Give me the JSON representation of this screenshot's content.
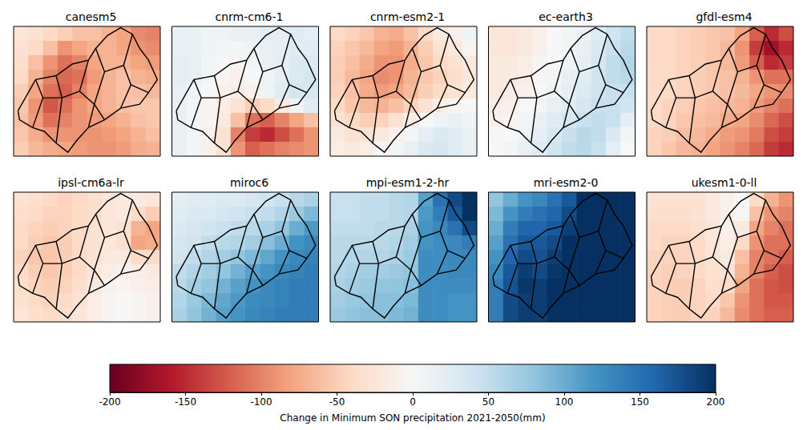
{
  "chart_data": {
    "type": "heatmap",
    "tick_labels": false,
    "colorbar": {
      "range": [
        -200,
        200
      ],
      "ticks": [
        -200,
        -150,
        -100,
        -50,
        0,
        50,
        100,
        150,
        200
      ],
      "label": "Change in Minimum SON precipitation 2021-2050(mm)"
    },
    "panels": [
      {
        "title": "canesm5",
        "cells": [
          [
            -25,
            -30,
            -40,
            -50,
            -60,
            -60,
            -70,
            -80,
            -95,
            -100
          ],
          [
            -30,
            -40,
            -60,
            -90,
            -80,
            -70,
            -70,
            -80,
            -90,
            -95
          ],
          [
            -35,
            -60,
            -90,
            -110,
            -100,
            -80,
            -70,
            -70,
            -80,
            -85
          ],
          [
            -40,
            -70,
            -100,
            -115,
            -110,
            -85,
            -70,
            -60,
            -70,
            -75
          ],
          [
            -50,
            -80,
            -110,
            -120,
            -100,
            -80,
            -70,
            -60,
            -60,
            -65
          ],
          [
            -55,
            -90,
            -125,
            -110,
            -90,
            -80,
            -70,
            -60,
            -55,
            -55
          ],
          [
            -60,
            -85,
            -110,
            -100,
            -90,
            -85,
            -80,
            -70,
            -60,
            -55
          ],
          [
            -55,
            -75,
            -90,
            -90,
            -90,
            -90,
            -85,
            -80,
            -70,
            -60
          ],
          [
            -50,
            -65,
            -75,
            -80,
            -85,
            -90,
            -90,
            -85,
            -75,
            -70
          ]
        ]
      },
      {
        "title": "cnrm-cm6-1",
        "cells": [
          [
            15,
            15,
            10,
            10,
            15,
            15,
            20,
            20,
            25,
            20
          ],
          [
            15,
            15,
            10,
            5,
            5,
            10,
            15,
            20,
            25,
            25
          ],
          [
            20,
            15,
            5,
            0,
            -5,
            5,
            15,
            20,
            30,
            30
          ],
          [
            20,
            15,
            5,
            -5,
            -10,
            0,
            10,
            20,
            30,
            35
          ],
          [
            15,
            10,
            0,
            -10,
            -15,
            -10,
            10,
            25,
            35,
            35
          ],
          [
            15,
            5,
            -5,
            -15,
            -30,
            -50,
            -40,
            -20,
            10,
            25
          ],
          [
            15,
            5,
            -5,
            -20,
            -60,
            -110,
            -120,
            -100,
            -80,
            -60
          ],
          [
            15,
            5,
            -10,
            -30,
            -100,
            -140,
            -150,
            -130,
            -110,
            -90
          ],
          [
            15,
            5,
            -10,
            -30,
            -90,
            -120,
            -110,
            -100,
            -95,
            -90
          ]
        ]
      },
      {
        "title": "cnrm-esm2-1",
        "cells": [
          [
            -40,
            -45,
            -55,
            -70,
            -75,
            -60,
            -40,
            -20,
            -10,
            10
          ],
          [
            -45,
            -55,
            -65,
            -80,
            -85,
            -70,
            -50,
            -30,
            -20,
            -5
          ],
          [
            -50,
            -60,
            -75,
            -90,
            -90,
            -75,
            -55,
            -40,
            -30,
            -20
          ],
          [
            -50,
            -65,
            -80,
            -95,
            -90,
            -70,
            -55,
            -45,
            -35,
            -25
          ],
          [
            -45,
            -60,
            -75,
            -85,
            -80,
            -65,
            -50,
            -40,
            -30,
            -20
          ],
          [
            -40,
            -55,
            -65,
            -70,
            -60,
            -45,
            -30,
            -15,
            -5,
            0
          ],
          [
            -30,
            -40,
            -50,
            -45,
            -30,
            -15,
            0,
            10,
            15,
            10
          ],
          [
            -20,
            -30,
            -30,
            -20,
            -10,
            5,
            20,
            30,
            25,
            15
          ],
          [
            -15,
            -20,
            -15,
            -5,
            5,
            15,
            30,
            35,
            25,
            15
          ]
        ]
      },
      {
        "title": "ec-earth3",
        "cells": [
          [
            -25,
            -25,
            -20,
            -10,
            0,
            5,
            10,
            25,
            40,
            50
          ],
          [
            -25,
            -25,
            -20,
            -10,
            0,
            5,
            15,
            30,
            45,
            55
          ],
          [
            -20,
            -20,
            -15,
            -5,
            0,
            10,
            20,
            35,
            50,
            60
          ],
          [
            -20,
            -20,
            -15,
            -5,
            5,
            15,
            25,
            40,
            50,
            55
          ],
          [
            -20,
            -15,
            -10,
            0,
            10,
            20,
            30,
            40,
            45,
            45
          ],
          [
            -15,
            -10,
            0,
            5,
            15,
            25,
            35,
            45,
            45,
            40
          ],
          [
            -10,
            -5,
            5,
            15,
            25,
            35,
            45,
            50,
            45,
            20
          ],
          [
            -5,
            0,
            10,
            20,
            35,
            45,
            55,
            50,
            30,
            5
          ],
          [
            0,
            5,
            15,
            25,
            40,
            50,
            55,
            45,
            20,
            0
          ]
        ]
      },
      {
        "title": "gfdl-esm4",
        "cells": [
          [
            -40,
            -40,
            -45,
            -50,
            -55,
            -60,
            -80,
            -120,
            -150,
            -130
          ],
          [
            -40,
            -40,
            -45,
            -50,
            -55,
            -65,
            -90,
            -140,
            -170,
            -150
          ],
          [
            -40,
            -40,
            -45,
            -50,
            -55,
            -65,
            -85,
            -120,
            -150,
            -140
          ],
          [
            -40,
            -40,
            -45,
            -50,
            -55,
            -60,
            -70,
            -90,
            -110,
            -110
          ],
          [
            -40,
            -40,
            -45,
            -50,
            -55,
            -60,
            -65,
            -80,
            -90,
            -95
          ],
          [
            -40,
            -45,
            -50,
            -55,
            -60,
            -65,
            -70,
            -85,
            -100,
            -110
          ],
          [
            -40,
            -45,
            -55,
            -60,
            -65,
            -75,
            -80,
            -95,
            -115,
            -130
          ],
          [
            -45,
            -50,
            -60,
            -65,
            -75,
            -85,
            -90,
            -105,
            -130,
            -140
          ],
          [
            -45,
            -55,
            -65,
            -70,
            -80,
            -90,
            -100,
            -115,
            -140,
            -150
          ]
        ]
      },
      {
        "title": "ipsl-cm6a-lr",
        "cells": [
          [
            -30,
            -35,
            -40,
            -45,
            -40,
            -35,
            -25,
            -20,
            -20,
            -25
          ],
          [
            -35,
            -40,
            -45,
            -45,
            -40,
            -35,
            -25,
            -20,
            -40,
            -50
          ],
          [
            -40,
            -45,
            -50,
            -45,
            -40,
            -30,
            -25,
            -30,
            -70,
            -80
          ],
          [
            -40,
            -50,
            -55,
            -50,
            -40,
            -30,
            -25,
            -35,
            -80,
            -75
          ],
          [
            -45,
            -55,
            -55,
            -50,
            -40,
            -30,
            -20,
            -20,
            -40,
            -40
          ],
          [
            -40,
            -50,
            -55,
            -50,
            -40,
            -25,
            -15,
            -10,
            -15,
            -20
          ],
          [
            -35,
            -45,
            -50,
            -45,
            -35,
            -20,
            -10,
            -5,
            -10,
            -15
          ],
          [
            -30,
            -40,
            -45,
            -40,
            -30,
            -15,
            -5,
            0,
            -5,
            -10
          ],
          [
            -25,
            -35,
            -40,
            -35,
            -25,
            -15,
            -5,
            0,
            -5,
            -10
          ]
        ]
      },
      {
        "title": "miroc6",
        "cells": [
          [
            20,
            25,
            25,
            30,
            30,
            35,
            40,
            45,
            55,
            65
          ],
          [
            25,
            30,
            30,
            35,
            40,
            45,
            50,
            60,
            75,
            90
          ],
          [
            30,
            35,
            40,
            45,
            50,
            55,
            65,
            80,
            100,
            115
          ],
          [
            35,
            40,
            50,
            55,
            60,
            70,
            85,
            100,
            120,
            130
          ],
          [
            40,
            50,
            60,
            70,
            80,
            90,
            105,
            120,
            130,
            135
          ],
          [
            50,
            60,
            70,
            80,
            95,
            110,
            120,
            130,
            135,
            140
          ],
          [
            55,
            70,
            80,
            95,
            110,
            120,
            130,
            135,
            140,
            140
          ],
          [
            60,
            75,
            90,
            105,
            115,
            125,
            130,
            135,
            140,
            140
          ],
          [
            65,
            80,
            95,
            110,
            120,
            130,
            135,
            140,
            140,
            140
          ]
        ]
      },
      {
        "title": "mpi-esm1-2-hr",
        "cells": [
          [
            45,
            45,
            50,
            50,
            55,
            60,
            110,
            150,
            180,
            200
          ],
          [
            45,
            45,
            50,
            50,
            55,
            60,
            115,
            140,
            170,
            200
          ],
          [
            50,
            50,
            50,
            55,
            55,
            65,
            120,
            130,
            150,
            180
          ],
          [
            55,
            55,
            55,
            55,
            60,
            70,
            120,
            125,
            130,
            140
          ],
          [
            55,
            60,
            60,
            60,
            65,
            75,
            125,
            125,
            130,
            130
          ],
          [
            60,
            65,
            70,
            70,
            75,
            80,
            125,
            125,
            130,
            130
          ],
          [
            65,
            70,
            75,
            80,
            80,
            85,
            125,
            125,
            125,
            125
          ],
          [
            70,
            75,
            80,
            85,
            85,
            90,
            125,
            125,
            120,
            120
          ],
          [
            75,
            80,
            85,
            85,
            90,
            95,
            125,
            125,
            120,
            120
          ]
        ]
      },
      {
        "title": "mri-esm2-0",
        "cells": [
          [
            80,
            100,
            120,
            130,
            150,
            170,
            200,
            200,
            200,
            200
          ],
          [
            90,
            120,
            140,
            150,
            160,
            180,
            200,
            200,
            200,
            200
          ],
          [
            100,
            140,
            160,
            160,
            170,
            190,
            200,
            200,
            200,
            200
          ],
          [
            110,
            150,
            170,
            170,
            180,
            200,
            200,
            200,
            200,
            200
          ],
          [
            120,
            160,
            180,
            175,
            190,
            200,
            200,
            200,
            200,
            200
          ],
          [
            130,
            170,
            190,
            180,
            195,
            200,
            200,
            200,
            200,
            200
          ],
          [
            140,
            175,
            195,
            190,
            200,
            200,
            200,
            200,
            200,
            200
          ],
          [
            140,
            180,
            190,
            190,
            200,
            200,
            200,
            200,
            200,
            200
          ],
          [
            140,
            180,
            190,
            190,
            200,
            200,
            200,
            200,
            200,
            200
          ]
        ]
      },
      {
        "title": "ukesm1-0-ll",
        "cells": [
          [
            -30,
            -30,
            -30,
            -30,
            -20,
            -10,
            0,
            -40,
            -70,
            -90
          ],
          [
            -35,
            -35,
            -35,
            -30,
            -20,
            -10,
            -5,
            -60,
            -90,
            -100
          ],
          [
            -40,
            -40,
            -40,
            -35,
            -25,
            -10,
            -20,
            -80,
            -100,
            -110
          ],
          [
            -40,
            -45,
            -45,
            -40,
            -25,
            -15,
            -40,
            -90,
            -110,
            -110
          ],
          [
            -45,
            -45,
            -45,
            -40,
            -30,
            -20,
            -60,
            -100,
            -110,
            -120
          ],
          [
            -45,
            -50,
            -45,
            -40,
            -30,
            -30,
            -70,
            -100,
            -120,
            -130
          ],
          [
            -45,
            -50,
            -50,
            -45,
            -35,
            -40,
            -80,
            -110,
            -125,
            -130
          ],
          [
            -45,
            -50,
            -50,
            -45,
            -40,
            -55,
            -90,
            -110,
            -125,
            -125
          ],
          [
            -45,
            -50,
            -50,
            -45,
            -45,
            -65,
            -95,
            -110,
            -120,
            -120
          ]
        ]
      }
    ]
  }
}
